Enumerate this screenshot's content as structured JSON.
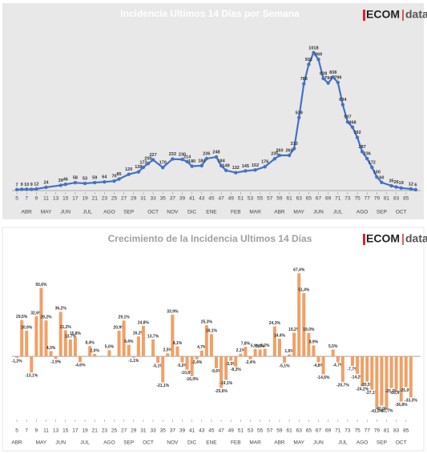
{
  "chart_data": [
    {
      "type": "line",
      "title": "Incidencia Ultimos 14 Días por Semana",
      "logo": [
        "ECOM",
        "data"
      ],
      "x": [
        5,
        6,
        7,
        8,
        9,
        11,
        14,
        15,
        17,
        19,
        21,
        23,
        25,
        26,
        28,
        30,
        31,
        32,
        33,
        35,
        37,
        39,
        40,
        41,
        43,
        44,
        46,
        47,
        48,
        50,
        52,
        54,
        56,
        58,
        59,
        61,
        62,
        63,
        64,
        65,
        66,
        67,
        68,
        69,
        70,
        71,
        72,
        73,
        74,
        75,
        76,
        77,
        78,
        79,
        80,
        82,
        83,
        84,
        86,
        87
      ],
      "series": [
        {
          "name": "Incidencia",
          "color": "#4472c4",
          "values": [
            7,
            9,
            10,
            9,
            12,
            24,
            39,
            46,
            58,
            53,
            59,
            64,
            70,
            85,
            120,
            138,
            172,
            200,
            227,
            170,
            233,
            230,
            214,
            180,
            184,
            236,
            248,
            184,
            149,
            132,
            145,
            152,
            176,
            235,
            260,
            260,
            310,
            539,
            788,
            932,
            1018,
            969,
            828,
            794,
            838,
            799,
            634,
            507,
            468,
            392,
            287,
            236,
            172,
            100,
            60,
            35,
            26,
            19,
            12,
            6
          ]
        }
      ],
      "xlim": [
        4,
        88
      ],
      "ylim": [
        0,
        1100
      ],
      "xticks": [
        5,
        7,
        9,
        11,
        13,
        15,
        17,
        19,
        21,
        23,
        25,
        27,
        29,
        31,
        33,
        35,
        37,
        39,
        41,
        43,
        45,
        47,
        49,
        51,
        53,
        55,
        57,
        59,
        61,
        63,
        65,
        67,
        69,
        71,
        73,
        75,
        77,
        79,
        81,
        83,
        85
      ],
      "month_ticks": [
        {
          "value": 7,
          "label": "ABR"
        },
        {
          "value": 11,
          "label": "MAY"
        },
        {
          "value": 15,
          "label": "JUN"
        },
        {
          "value": 19.5,
          "label": "JUL"
        },
        {
          "value": 24,
          "label": "AGO"
        },
        {
          "value": 28,
          "label": "SEP"
        },
        {
          "value": 33,
          "label": "OCT"
        },
        {
          "value": 37,
          "label": "NOV"
        },
        {
          "value": 41,
          "label": "DIC"
        },
        {
          "value": 45,
          "label": "ENE"
        },
        {
          "value": 50,
          "label": "FEB"
        },
        {
          "value": 54,
          "label": "MAR"
        },
        {
          "value": 59,
          "label": "ABR"
        },
        {
          "value": 63,
          "label": "MAY"
        },
        {
          "value": 67,
          "label": "JUN"
        },
        {
          "value": 71,
          "label": "JUL"
        },
        {
          "value": 76,
          "label": "AGO"
        },
        {
          "value": 80,
          "label": "SEP"
        },
        {
          "value": 84,
          "label": "OCT"
        }
      ]
    },
    {
      "type": "bar",
      "title": "Crecimiento de la Incidencia Ultimos 14 Días",
      "logo": [
        "ECOM",
        "data"
      ],
      "x": [
        5,
        6,
        7,
        8,
        9,
        10,
        11,
        12,
        13,
        14,
        15,
        16,
        17,
        18,
        20,
        21,
        24,
        26,
        27,
        28,
        29,
        30,
        31,
        33,
        34,
        35,
        36,
        37,
        38,
        39,
        40,
        41,
        42,
        43,
        44,
        45,
        46,
        47,
        48,
        49,
        50,
        51,
        52,
        53,
        54,
        55,
        56,
        58,
        59,
        60,
        61,
        62,
        63,
        64,
        65,
        66,
        67,
        68,
        70,
        71,
        72,
        74,
        75,
        76,
        77,
        78,
        79,
        80,
        81,
        82,
        83,
        84,
        85,
        86
      ],
      "series": [
        {
          "name": "Crecimiento",
          "color": "#f0a066",
          "values": [
            -1.2,
            29.5,
            20.9,
            -13.1,
            32.6,
            55.6,
            29.2,
            4.3,
            -1.9,
            36.2,
            21.2,
            13.7,
            15.8,
            -4.6,
            8.4,
            2.0,
            5.0,
            20.9,
            29.1,
            9.4,
            -1.1,
            16.2,
            24.8,
            13.7,
            -5.1,
            -21.1,
            2.5,
            33.9,
            8.1,
            -5.0,
            -10.8,
            -16.0,
            -2.4,
            4.7,
            25.3,
            18.1,
            -9.6,
            -25.6,
            -19.1,
            -3.5,
            -8.3,
            2.1,
            7.8,
            -2.4,
            5.9,
            5.6,
            6.2,
            24.3,
            14.4,
            -5.1,
            1.6,
            19.2,
            67.4,
            51.4,
            19.0,
            8.9,
            -4.8,
            -14.6,
            5.5,
            -4.7,
            -20.7,
            -7.7,
            -14.2,
            -24.2,
            -20.5,
            -27.1,
            -41.9,
            -40.0,
            -41.7,
            -25.7,
            -26.9,
            -36.8,
            -25.0,
            -33.3
          ],
          "value_labels": [
            "-1,2%",
            "29,5%",
            "20,9%",
            "-13,1%",
            "32,6%",
            "55,6%",
            "29,2%",
            "4,3%",
            "-1,9%",
            "36,2%",
            "21,2%",
            "13,7%",
            "15,8%",
            "-4,6%",
            "8,4%",
            "2,0%",
            "5,0%",
            "20,9%",
            "29,1%",
            "9,4%",
            "-1,1%",
            "16,2%",
            "24,8%",
            "13,7%",
            "-5,1%",
            "-21,1%",
            "2,5%",
            "33,9%",
            "8,1%",
            "-5,0%",
            "-10,8%",
            "-16,0%",
            "-2,4%",
            "4,7%",
            "25,3%",
            "18,1%",
            "-9,6%",
            "-25,6%",
            "-19,1%",
            "-3,5%",
            "-8,3%",
            "2,1%",
            "7,8%",
            "-2,4%",
            "5,9%",
            "5,6%",
            "6,2%",
            "24,3%",
            "14,4%",
            "-5,1%",
            "1,6%",
            "19,2%",
            "67,4%",
            "51,4%",
            "19,0%",
            "8,9%",
            "-4,8%",
            "-14,6%",
            "5,5%",
            "-4,7%",
            "-20,7%",
            "-7,7%",
            "-14,2%",
            "-24,2%",
            "-20,5%",
            "-27,1%",
            "-41,9%",
            "-40,0%",
            "-41,7%",
            "-25,7%",
            "-26,9%",
            "-36,8%",
            "-25,0%",
            "-33,3%"
          ]
        }
      ],
      "xlim": [
        4,
        88
      ],
      "ylim": [
        -50,
        80
      ],
      "xticks": [
        5,
        7,
        9,
        11,
        13,
        15,
        17,
        19,
        21,
        23,
        25,
        27,
        29,
        31,
        33,
        35,
        37,
        39,
        41,
        43,
        45,
        47,
        49,
        51,
        53,
        55,
        57,
        59,
        61,
        63,
        65,
        67,
        69,
        71,
        73,
        75,
        77,
        79,
        81,
        83,
        85
      ],
      "month_ticks": [
        {
          "value": 5,
          "label": "ABR"
        },
        {
          "value": 10,
          "label": "MAY"
        },
        {
          "value": 14,
          "label": "JUN"
        },
        {
          "value": 19,
          "label": "JUL"
        },
        {
          "value": 24,
          "label": "AGO"
        },
        {
          "value": 28,
          "label": "SEP"
        },
        {
          "value": 32,
          "label": "OCT"
        },
        {
          "value": 37,
          "label": "NOV"
        },
        {
          "value": 41,
          "label": "DIC"
        },
        {
          "value": 45,
          "label": "ENE"
        },
        {
          "value": 50,
          "label": "FEB"
        },
        {
          "value": 54,
          "label": "MAR"
        },
        {
          "value": 59,
          "label": "ABR"
        },
        {
          "value": 63,
          "label": "MAY"
        },
        {
          "value": 67,
          "label": "JUN"
        },
        {
          "value": 72,
          "label": "JUL"
        },
        {
          "value": 76,
          "label": "AGO"
        },
        {
          "value": 80,
          "label": "SEP"
        },
        {
          "value": 84,
          "label": "OCT"
        }
      ]
    }
  ]
}
